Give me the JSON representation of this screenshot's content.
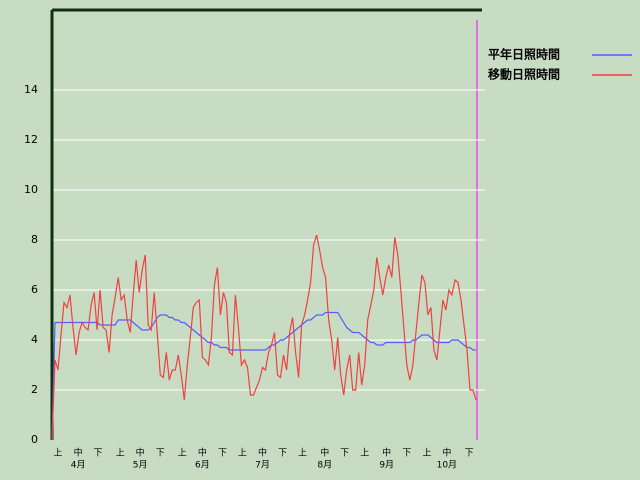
{
  "chart_data": {
    "type": "line",
    "xlim": [
      0,
      141
    ],
    "xticks": [
      {
        "value": 2,
        "label": "上"
      },
      {
        "value": 8.7,
        "label": "中"
      },
      {
        "value": 15.3,
        "label": "下"
      },
      {
        "value": 22.7,
        "label": "上"
      },
      {
        "value": 29.3,
        "label": "中"
      },
      {
        "value": 36,
        "label": "下"
      },
      {
        "value": 43.3,
        "label": "上"
      },
      {
        "value": 50,
        "label": "中"
      },
      {
        "value": 56.7,
        "label": "下"
      },
      {
        "value": 63.3,
        "label": "上"
      },
      {
        "value": 70,
        "label": "中"
      },
      {
        "value": 76.7,
        "label": "下"
      },
      {
        "value": 83.3,
        "label": "上"
      },
      {
        "value": 90.7,
        "label": "中"
      },
      {
        "value": 97.3,
        "label": "下"
      },
      {
        "value": 104,
        "label": "上"
      },
      {
        "value": 111.3,
        "label": "中"
      },
      {
        "value": 118,
        "label": "下"
      },
      {
        "value": 124.7,
        "label": "上"
      },
      {
        "value": 131.3,
        "label": "中"
      },
      {
        "value": 138.7,
        "label": "下"
      }
    ],
    "month_labels": [
      {
        "value": 8.7,
        "label": "4月"
      },
      {
        "value": 29.3,
        "label": "5月"
      },
      {
        "value": 50,
        "label": "6月"
      },
      {
        "value": 70,
        "label": "7月"
      },
      {
        "value": 90.7,
        "label": "8月"
      },
      {
        "value": 111.3,
        "label": "9月"
      },
      {
        "value": 131.3,
        "label": "10月"
      }
    ],
    "ylim": [
      0,
      17.2
    ],
    "yticks": [
      0,
      2,
      4,
      6,
      8,
      10,
      12,
      14
    ],
    "grid": true,
    "legend": "top-right",
    "series": [
      {
        "name": "平年日照時間",
        "color": "#5a5aff",
        "values": [
          0,
          4.7,
          4.7,
          4.7,
          4.7,
          4.7,
          4.7,
          4.7,
          4.7,
          4.7,
          4.7,
          4.7,
          4.7,
          4.7,
          4.7,
          4.7,
          4.6,
          4.6,
          4.6,
          4.6,
          4.6,
          4.6,
          4.8,
          4.8,
          4.8,
          4.8,
          4.8,
          4.7,
          4.6,
          4.5,
          4.4,
          4.4,
          4.4,
          4.5,
          4.7,
          4.9,
          5.0,
          5.0,
          5.0,
          4.9,
          4.9,
          4.8,
          4.8,
          4.7,
          4.7,
          4.6,
          4.5,
          4.4,
          4.3,
          4.2,
          4.1,
          4.0,
          3.9,
          3.9,
          3.8,
          3.8,
          3.7,
          3.7,
          3.7,
          3.6,
          3.6,
          3.6,
          3.6,
          3.6,
          3.6,
          3.6,
          3.6,
          3.6,
          3.6,
          3.6,
          3.6,
          3.6,
          3.7,
          3.8,
          3.8,
          3.9,
          4.0,
          4.0,
          4.1,
          4.2,
          4.3,
          4.4,
          4.5,
          4.6,
          4.7,
          4.8,
          4.8,
          4.9,
          5.0,
          5.0,
          5.0,
          5.1,
          5.1,
          5.1,
          5.1,
          5.1,
          4.9,
          4.7,
          4.5,
          4.4,
          4.3,
          4.3,
          4.3,
          4.2,
          4.1,
          4.0,
          3.9,
          3.9,
          3.8,
          3.8,
          3.8,
          3.9,
          3.9,
          3.9,
          3.9,
          3.9,
          3.9,
          3.9,
          3.9,
          3.9,
          4.0,
          4.0,
          4.1,
          4.2,
          4.2,
          4.2,
          4.1,
          4.0,
          3.9,
          3.9,
          3.9,
          3.9,
          3.9,
          4.0,
          4.0,
          4.0,
          3.9,
          3.8,
          3.7,
          3.7,
          3.6,
          3.6
        ]
      },
      {
        "name": "移動日照時間",
        "color": "#f04040",
        "values": [
          0,
          3.2,
          2.8,
          4.2,
          5.5,
          5.3,
          5.8,
          4.5,
          3.4,
          4.3,
          4.7,
          4.5,
          4.4,
          5.4,
          5.9,
          4.4,
          6.0,
          4.5,
          4.4,
          3.5,
          5.0,
          5.7,
          6.5,
          5.6,
          5.8,
          4.8,
          4.3,
          5.8,
          7.2,
          5.9,
          6.8,
          7.4,
          4.6,
          4.4,
          5.9,
          4.3,
          2.6,
          2.5,
          3.5,
          2.4,
          2.8,
          2.8,
          3.4,
          2.6,
          1.6,
          3.0,
          4.1,
          5.3,
          5.5,
          5.6,
          3.3,
          3.2,
          3.0,
          4.1,
          6.2,
          6.9,
          5.0,
          5.9,
          5.5,
          3.5,
          3.4,
          5.8,
          4.5,
          3.0,
          3.2,
          2.9,
          1.8,
          1.8,
          2.1,
          2.4,
          2.9,
          2.8,
          3.5,
          3.8,
          4.3,
          2.6,
          2.5,
          3.4,
          2.8,
          4.3,
          4.9,
          3.5,
          2.5,
          4.6,
          5.0,
          5.6,
          6.3,
          7.8,
          8.2,
          7.6,
          6.9,
          6.5,
          4.8,
          4.0,
          2.8,
          4.1,
          2.6,
          1.8,
          2.8,
          3.4,
          2.0,
          2.0,
          3.5,
          2.2,
          3.0,
          4.8,
          5.4,
          6.0,
          7.3,
          6.5,
          5.8,
          6.5,
          7.0,
          6.5,
          8.1,
          7.4,
          6.0,
          4.5,
          3.0,
          2.4,
          3.0,
          4.3,
          5.5,
          6.6,
          6.3,
          5.0,
          5.3,
          3.6,
          3.2,
          4.4,
          5.6,
          5.2,
          6.0,
          5.8,
          6.4,
          6.3,
          5.6,
          4.6,
          3.6,
          2.0,
          2.0,
          1.6
        ]
      }
    ]
  }
}
